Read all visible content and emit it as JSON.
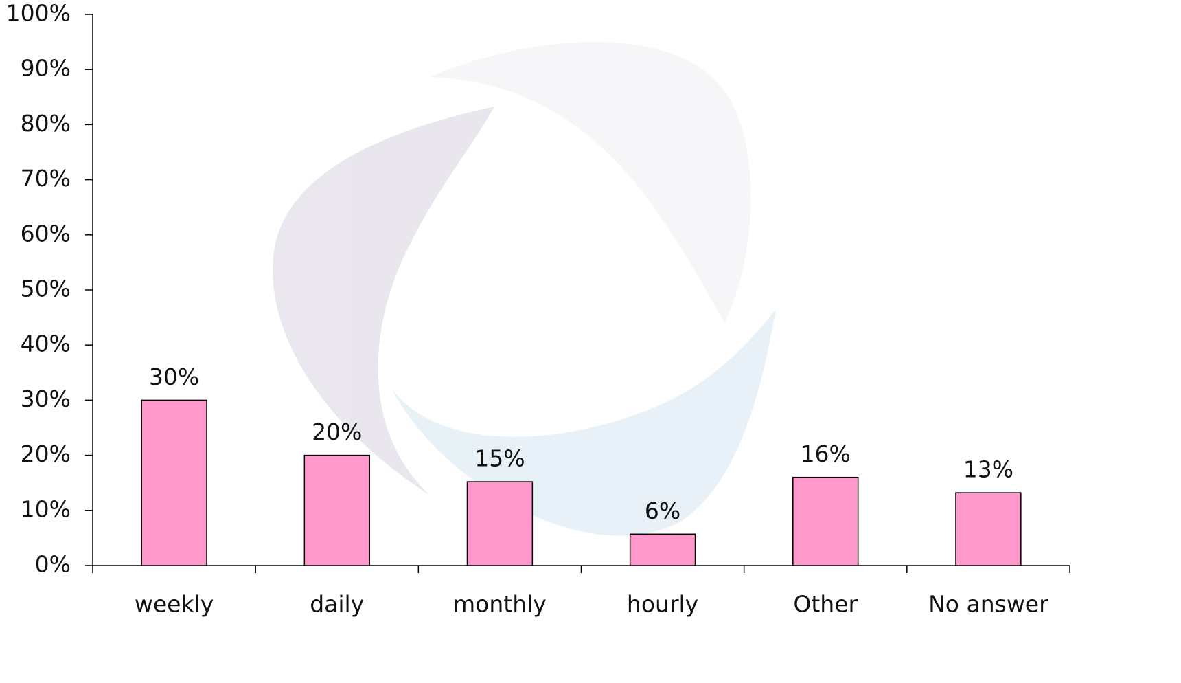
{
  "chart_data": {
    "type": "bar",
    "categories": [
      "weekly",
      "daily",
      "monthly",
      "hourly",
      "Other",
      "No answer"
    ],
    "values": [
      30,
      20,
      15.2,
      5.7,
      16,
      13.2
    ],
    "value_labels": [
      "30%",
      "20%",
      "15%",
      "6%",
      "16%",
      "13%"
    ],
    "color": "#ff99cc",
    "ylim": [
      0,
      100
    ],
    "yticks": [
      {
        "value": 0,
        "label": "0%"
      },
      {
        "value": 10,
        "label": "10%"
      },
      {
        "value": 20,
        "label": "20%"
      },
      {
        "value": 30,
        "label": "30%"
      },
      {
        "value": 40,
        "label": "40%"
      },
      {
        "value": 50,
        "label": "50%"
      },
      {
        "value": 60,
        "label": "60%"
      },
      {
        "value": 70,
        "label": "70%"
      },
      {
        "value": 80,
        "label": "80%"
      },
      {
        "value": 90,
        "label": "90%"
      },
      {
        "value": 100,
        "label": "100%"
      }
    ]
  }
}
